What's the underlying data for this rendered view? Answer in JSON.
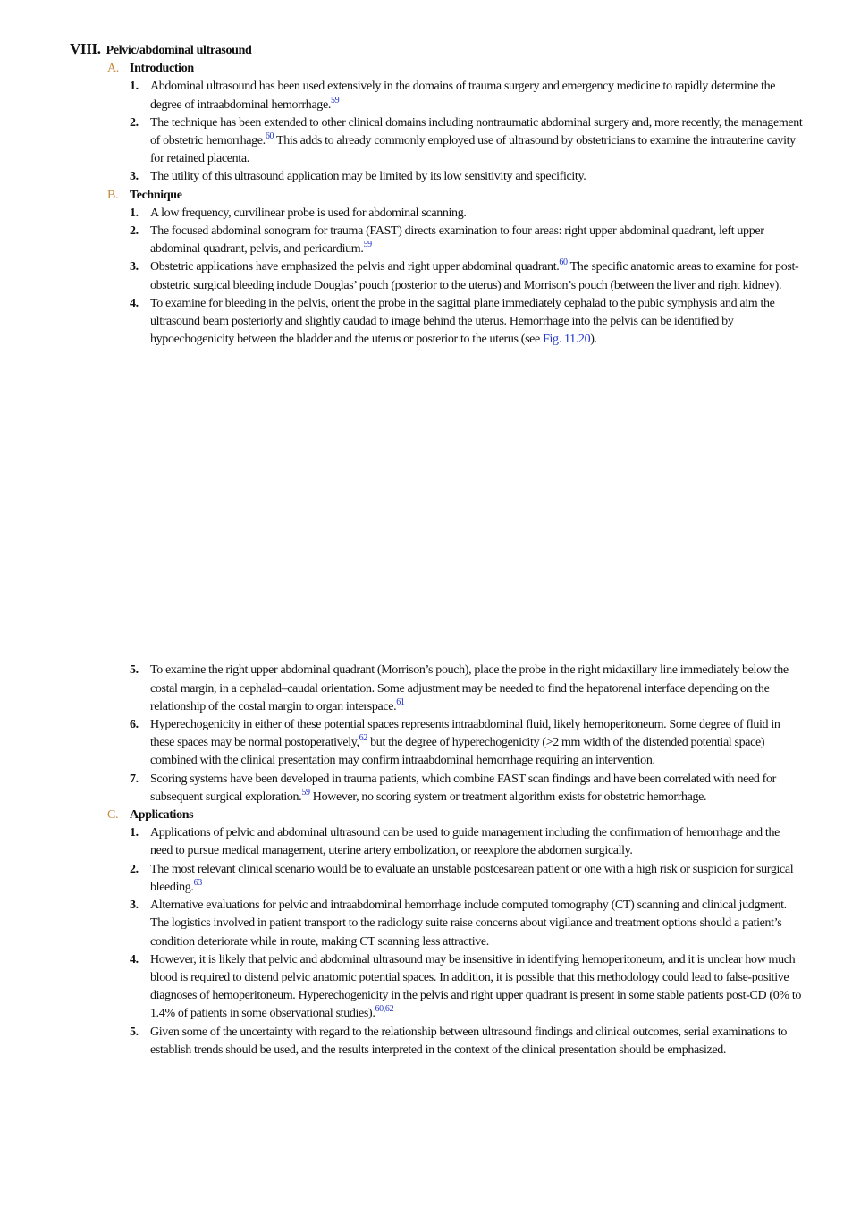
{
  "heading": {
    "number": "VIII.",
    "title": "Pelvic/abdominal ultrasound"
  },
  "sections": [
    {
      "letter": "A.",
      "title": "Introduction",
      "items": [
        {
          "num": "1.",
          "segments": [
            {
              "text": "Abdominal ultrasound has been used extensively in the domains of trauma surgery and emergency medicine to rapidly determine the degree of intraabdominal hemorrhage."
            },
            {
              "sup": "59"
            }
          ]
        },
        {
          "num": "2.",
          "segments": [
            {
              "text": "The technique has been extended to other clinical domains including nontraumatic abdominal surgery and, more recently, the management of obstetric hemorrhage."
            },
            {
              "sup": "60"
            },
            {
              "text": " This adds to already commonly employed use of ultrasound by obstetricians to examine the intrauterine cavity for retained placenta."
            }
          ]
        },
        {
          "num": "3.",
          "segments": [
            {
              "text": "The utility of this ultrasound application may be limited by its low sensitivity and specificity."
            }
          ]
        }
      ]
    },
    {
      "letter": "B.",
      "title": "Technique",
      "items": [
        {
          "num": "1.",
          "segments": [
            {
              "text": "A low frequency, curvilinear probe is used for abdominal scanning."
            }
          ]
        },
        {
          "num": "2.",
          "segments": [
            {
              "text": "The focused abdominal sonogram for trauma (FAST) directs examination to four areas: right upper abdominal quadrant, left upper abdominal quadrant, pelvis, and pericardium."
            },
            {
              "sup": "59"
            }
          ]
        },
        {
          "num": "3.",
          "segments": [
            {
              "text": "Obstetric applications have emphasized the pelvis and right upper abdominal quadrant."
            },
            {
              "sup": "60"
            },
            {
              "text": " The specific anatomic areas to examine for post-obstetric surgical bleeding include Douglas’ pouch (posterior to the uterus) and Morrison’s pouch (between the liver and right kidney)."
            }
          ]
        },
        {
          "num": "4.",
          "segments": [
            {
              "text": "To examine for bleeding in the pelvis, orient the probe in the sagittal plane immediately cephalad to the pubic symphysis and aim the ultrasound beam posteriorly and slightly caudad to image behind the uterus. Hemorrhage into the pelvis can be identified by hypoechogenicity between the bladder and the uterus or posterior to the uterus (see "
            },
            {
              "link": "Fig. 11.20"
            },
            {
              "text": ")."
            }
          ]
        },
        {
          "num": "5.",
          "segments": [
            {
              "text": "To examine the right upper abdominal quadrant (Morrison’s pouch), place the probe in the right midaxillary line immediately below the costal margin, in a cephalad–caudal orientation. Some adjustment may be needed to find the hepatorenal interface depending on the relationship of the costal margin to organ interspace."
            },
            {
              "sup": "61"
            }
          ]
        },
        {
          "num": "6.",
          "segments": [
            {
              "text": "Hyperechogenicity in either of these potential spaces represents intraabdominal fluid, likely hemoperitoneum. Some degree of fluid in these spaces may be normal postoperatively,"
            },
            {
              "sup": "62"
            },
            {
              "text": " but the degree of hyperechogenicity (>2 mm width of the distended potential space) combined with the clinical presentation may confirm intraabdominal hemorrhage requiring an intervention."
            }
          ]
        },
        {
          "num": "7.",
          "segments": [
            {
              "text": "Scoring systems have been developed in trauma patients, which combine FAST scan findings and have been correlated with need for subsequent surgical exploration."
            },
            {
              "sup": "59"
            },
            {
              "text": " However, no scoring system or treatment algorithm exists for obstetric hemorrhage."
            }
          ]
        }
      ]
    },
    {
      "letter": "C.",
      "title": "Applications",
      "items": [
        {
          "num": "1.",
          "segments": [
            {
              "text": "Applications of pelvic and abdominal ultrasound can be used to guide management including the confirmation of hemorrhage and the need to pursue medical management, uterine artery embolization, or reexplore the abdomen surgically."
            }
          ]
        },
        {
          "num": "2.",
          "segments": [
            {
              "text": "The most relevant clinical scenario would be to evaluate an unstable postcesarean patient or one with a high risk or suspicion for surgical bleeding."
            },
            {
              "sup": "63"
            }
          ]
        },
        {
          "num": "3.",
          "segments": [
            {
              "text": "Alternative evaluations for pelvic and intraabdominal hemorrhage include computed tomography (CT) scanning and clinical judgment. The logistics involved in patient transport to the radiology suite raise concerns about vigilance and treatment options should a patient’s condition deteriorate while in route, making CT scanning less attractive."
            }
          ]
        },
        {
          "num": "4.",
          "segments": [
            {
              "text": "However, it is likely that pelvic and abdominal ultrasound may be insensitive in identifying hemoperitoneum, and it is unclear how much blood is required to distend pelvic anatomic potential spaces. In addition, it is possible that this methodology could lead to false-positive diagnoses of hemoperitoneum. Hyperechogenicity in the pelvis and right upper quadrant is present in some stable patients post-CD (0% to 1.4% of patients in some observational studies)."
            },
            {
              "sup": "60,62"
            }
          ]
        },
        {
          "num": "5.",
          "segments": [
            {
              "text": "Given some of the uncertainty with regard to the relationship between ultrasound findings and clinical outcomes, serial examinations to establish trends should be used, and the results interpreted in the context of the clinical presentation should be emphasized."
            }
          ]
        }
      ]
    }
  ]
}
